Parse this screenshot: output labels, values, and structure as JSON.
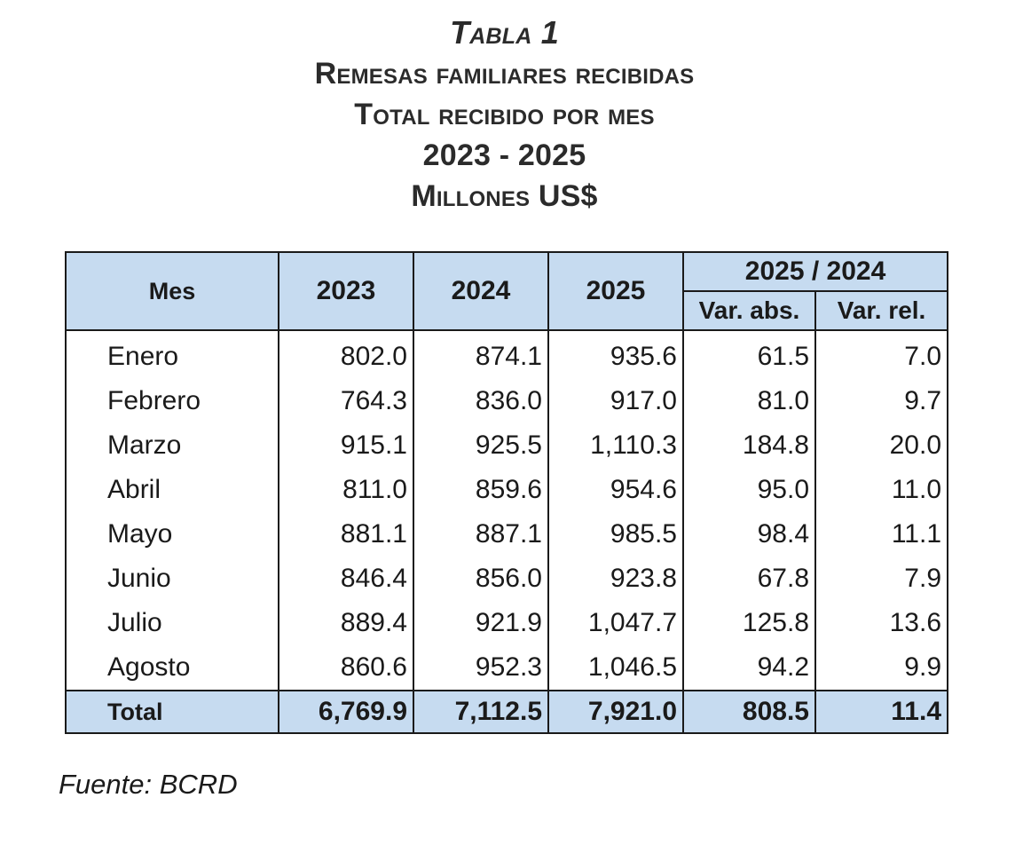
{
  "header": {
    "table_number": "Tabla 1",
    "title": "Remesas familiares recibidas",
    "subtitle": "Total recibido por mes",
    "period": "2023 - 2025",
    "units": "Millones US$"
  },
  "table": {
    "columns": {
      "mes": "Mes",
      "y2023": "2023",
      "y2024": "2024",
      "y2025": "2025",
      "comparison": "2025 / 2024",
      "var_abs": "Var. abs.",
      "var_rel": "Var. rel."
    },
    "rows": [
      {
        "mes": "Enero",
        "y2023": "802.0",
        "y2024": "874.1",
        "y2025": "935.6",
        "var_abs": "61.5",
        "var_rel": "7.0"
      },
      {
        "mes": "Febrero",
        "y2023": "764.3",
        "y2024": "836.0",
        "y2025": "917.0",
        "var_abs": "81.0",
        "var_rel": "9.7"
      },
      {
        "mes": "Marzo",
        "y2023": "915.1",
        "y2024": "925.5",
        "y2025": "1,110.3",
        "var_abs": "184.8",
        "var_rel": "20.0"
      },
      {
        "mes": "Abril",
        "y2023": "811.0",
        "y2024": "859.6",
        "y2025": "954.6",
        "var_abs": "95.0",
        "var_rel": "11.0"
      },
      {
        "mes": "Mayo",
        "y2023": "881.1",
        "y2024": "887.1",
        "y2025": "985.5",
        "var_abs": "98.4",
        "var_rel": "11.1"
      },
      {
        "mes": "Junio",
        "y2023": "846.4",
        "y2024": "856.0",
        "y2025": "923.8",
        "var_abs": "67.8",
        "var_rel": "7.9"
      },
      {
        "mes": "Julio",
        "y2023": "889.4",
        "y2024": "921.9",
        "y2025": "1,047.7",
        "var_abs": "125.8",
        "var_rel": "13.6"
      },
      {
        "mes": "Agosto",
        "y2023": "860.6",
        "y2024": "952.3",
        "y2025": "1,046.5",
        "var_abs": "94.2",
        "var_rel": "9.9"
      }
    ],
    "total": {
      "mes": "Total",
      "y2023": "6,769.9",
      "y2024": "7,112.5",
      "y2025": "7,921.0",
      "var_abs": "808.5",
      "var_rel": "11.4"
    }
  },
  "source": "Fuente: BCRD",
  "colors": {
    "header_fill": "#c6dbf0",
    "border": "#1a1a1a",
    "text": "#1a1a1a"
  }
}
